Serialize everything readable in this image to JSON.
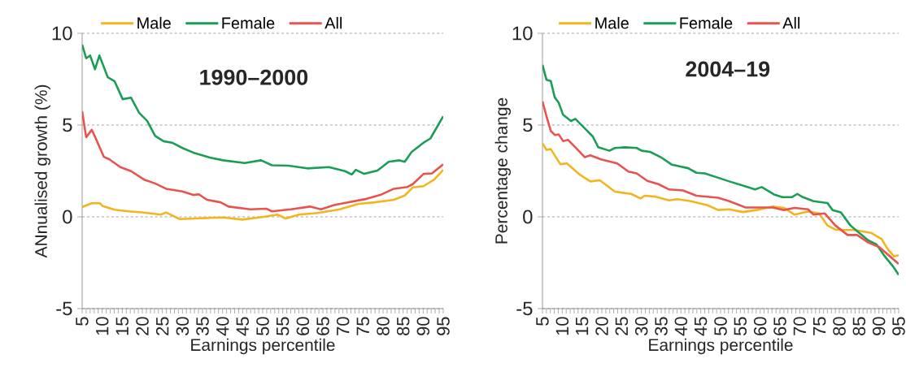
{
  "chart_data": [
    {
      "type": "line",
      "title": "1990–2000",
      "xlabel": "Earnings percentile",
      "ylabel": "ANnualised growth (%)",
      "xlim": [
        5,
        95
      ],
      "xticks": [
        5,
        10,
        15,
        20,
        25,
        30,
        35,
        40,
        45,
        50,
        55,
        60,
        65,
        70,
        75,
        80,
        85,
        90,
        95
      ],
      "ylim": [
        -5,
        10
      ],
      "yticks": [
        -5,
        0,
        5,
        10
      ],
      "grid": "y",
      "legend": "top",
      "marker": "none",
      "line_style": "solid",
      "series": [
        {
          "name": "Male",
          "color": "#f2b51d",
          "x": [
            5,
            7.4,
            9.4,
            10.1,
            13.1,
            16.5,
            19.9,
            24.6,
            25.9,
            29.3,
            33.4,
            40.1,
            44.9,
            50.3,
            53.7,
            55.7,
            59.1,
            63.8,
            69.2,
            73.9,
            78,
            82.7,
            85.4,
            87.4,
            90.1,
            92.8,
            95
          ],
          "values": [
            0.53,
            0.74,
            0.74,
            0.59,
            0.39,
            0.3,
            0.24,
            0.12,
            0.24,
            -0.12,
            -0.09,
            -0.03,
            -0.15,
            0,
            0.12,
            -0.09,
            0.12,
            0.21,
            0.41,
            0.71,
            0.79,
            0.93,
            1.16,
            1.6,
            1.67,
            2.04,
            2.56
          ]
        },
        {
          "name": "Female",
          "color": "#1a9e55",
          "x": [
            5,
            6,
            7,
            8.2,
            9.3,
            11.4,
            13.1,
            15.1,
            17.2,
            19.2,
            21.2,
            23.2,
            25.3,
            27.4,
            30,
            32.7,
            36.8,
            40.1,
            45.5,
            49.6,
            52.3,
            56.4,
            61.1,
            66.5,
            70.5,
            72.2,
            73.2,
            75.3,
            78.6,
            81.4,
            84.1,
            85.4,
            87.1,
            90.1,
            91.8,
            95
          ],
          "values": [
            9.38,
            8.64,
            8.79,
            8.04,
            8.79,
            7.6,
            7.38,
            6.41,
            6.49,
            5.67,
            5.23,
            4.41,
            4.12,
            4.04,
            3.75,
            3.5,
            3.23,
            3.08,
            2.93,
            3.08,
            2.81,
            2.79,
            2.64,
            2.71,
            2.49,
            2.31,
            2.56,
            2.34,
            2.52,
            3.0,
            3.08,
            3.0,
            3.53,
            4.04,
            4.27,
            5.48
          ]
        },
        {
          "name": "All",
          "color": "#e8524f",
          "x": [
            5,
            6,
            7.4,
            8.4,
            10.4,
            11.8,
            14.5,
            17.2,
            20.6,
            23.2,
            25.9,
            30,
            32.7,
            34.1,
            36.1,
            39.5,
            41.5,
            46.9,
            51,
            52.3,
            57,
            61.8,
            64.5,
            67.8,
            71.2,
            75.9,
            79.3,
            82.7,
            86.1,
            87.4,
            90.1,
            92.2,
            95
          ],
          "values": [
            5.75,
            4.34,
            4.74,
            4.27,
            3.27,
            3.13,
            2.71,
            2.49,
            2.01,
            1.82,
            1.53,
            1.38,
            1.19,
            1.23,
            0.93,
            0.79,
            0.56,
            0.41,
            0.44,
            0.3,
            0.41,
            0.56,
            0.41,
            0.64,
            0.79,
            0.98,
            1.19,
            1.53,
            1.63,
            1.78,
            2.34,
            2.37,
            2.86
          ]
        }
      ]
    },
    {
      "type": "line",
      "title": "2004–19",
      "xlabel": "Earnings percentile",
      "ylabel": "Percentage change",
      "xlim": [
        5,
        95
      ],
      "xticks": [
        5,
        10,
        15,
        20,
        25,
        30,
        35,
        40,
        45,
        50,
        55,
        60,
        65,
        70,
        75,
        80,
        85,
        90,
        95
      ],
      "ylim": [
        -5,
        10
      ],
      "yticks": [
        -5,
        0,
        5,
        10
      ],
      "grid": "y",
      "legend": "top",
      "marker": "none",
      "line_style": "solid",
      "series": [
        {
          "name": "Male",
          "color": "#f2b51d",
          "x": [
            5,
            6,
            7.1,
            9.5,
            11.2,
            14.3,
            17.1,
            19.5,
            23.3,
            27.4,
            29.8,
            30.8,
            33.6,
            37,
            39.1,
            42.5,
            46.7,
            49.4,
            52.2,
            55.6,
            59.1,
            63.2,
            66,
            68.7,
            72.1,
            74.9,
            77,
            79,
            81.1,
            83.9,
            88,
            90.7,
            92.1,
            93.8,
            95
          ],
          "values": [
            4.01,
            3.65,
            3.69,
            2.87,
            2.91,
            2.32,
            1.93,
            1.99,
            1.37,
            1.25,
            1.0,
            1.15,
            1.1,
            0.9,
            0.96,
            0.85,
            0.63,
            0.37,
            0.41,
            0.26,
            0.37,
            0.56,
            0.49,
            0.12,
            0.29,
            0.19,
            -0.47,
            -0.69,
            -0.72,
            -0.72,
            -0.87,
            -1.21,
            -1.72,
            -2.16,
            -2.09
          ]
        },
        {
          "name": "Female",
          "color": "#1a9e55",
          "x": [
            5,
            6,
            7.1,
            8.1,
            9.1,
            10.2,
            12.2,
            13.3,
            15.7,
            17.7,
            19.1,
            21.9,
            23.3,
            26,
            28.8,
            30.1,
            32.2,
            34.9,
            37.7,
            41.8,
            43.9,
            46,
            49.4,
            52.2,
            56.3,
            58.7,
            60.4,
            63.5,
            65.6,
            68,
            69.4,
            70.8,
            73.5,
            77,
            78.3,
            80.4,
            82.8,
            85.2,
            87.3,
            89.4,
            91.4,
            93.5,
            95
          ],
          "values": [
            8.28,
            7.47,
            7.4,
            6.51,
            6.22,
            5.56,
            5.22,
            5.34,
            4.82,
            4.38,
            3.79,
            3.6,
            3.75,
            3.79,
            3.75,
            3.6,
            3.54,
            3.25,
            2.84,
            2.65,
            2.4,
            2.37,
            2.13,
            1.93,
            1.66,
            1.49,
            1.62,
            1.22,
            1.07,
            1.07,
            1.25,
            1.07,
            0.85,
            0.75,
            0.37,
            0.24,
            -0.47,
            -0.91,
            -1.28,
            -1.5,
            -2.13,
            -2.68,
            -3.16
          ]
        },
        {
          "name": "All",
          "color": "#e8524f",
          "x": [
            5,
            6,
            7.1,
            8.1,
            9.1,
            10.2,
            11.5,
            13.6,
            15.7,
            17.1,
            19.8,
            23.9,
            26.7,
            28.8,
            31.5,
            34.3,
            37,
            40.5,
            43.9,
            49.4,
            52.2,
            56.3,
            60.4,
            63.2,
            66,
            68.7,
            72.1,
            73.5,
            76.3,
            79,
            82.1,
            84.5,
            87.3,
            90.1,
            92.8,
            95
          ],
          "values": [
            6.29,
            5.49,
            4.68,
            4.46,
            4.49,
            4.13,
            4.19,
            3.72,
            3.25,
            3.35,
            3.13,
            2.91,
            2.47,
            2.37,
            1.96,
            1.78,
            1.49,
            1.44,
            1.15,
            1.04,
            0.85,
            0.51,
            0.51,
            0.51,
            0.37,
            0.49,
            0.41,
            0.12,
            0.19,
            -0.47,
            -0.99,
            -0.99,
            -1.4,
            -1.65,
            -2.16,
            -2.57
          ]
        }
      ]
    }
  ]
}
